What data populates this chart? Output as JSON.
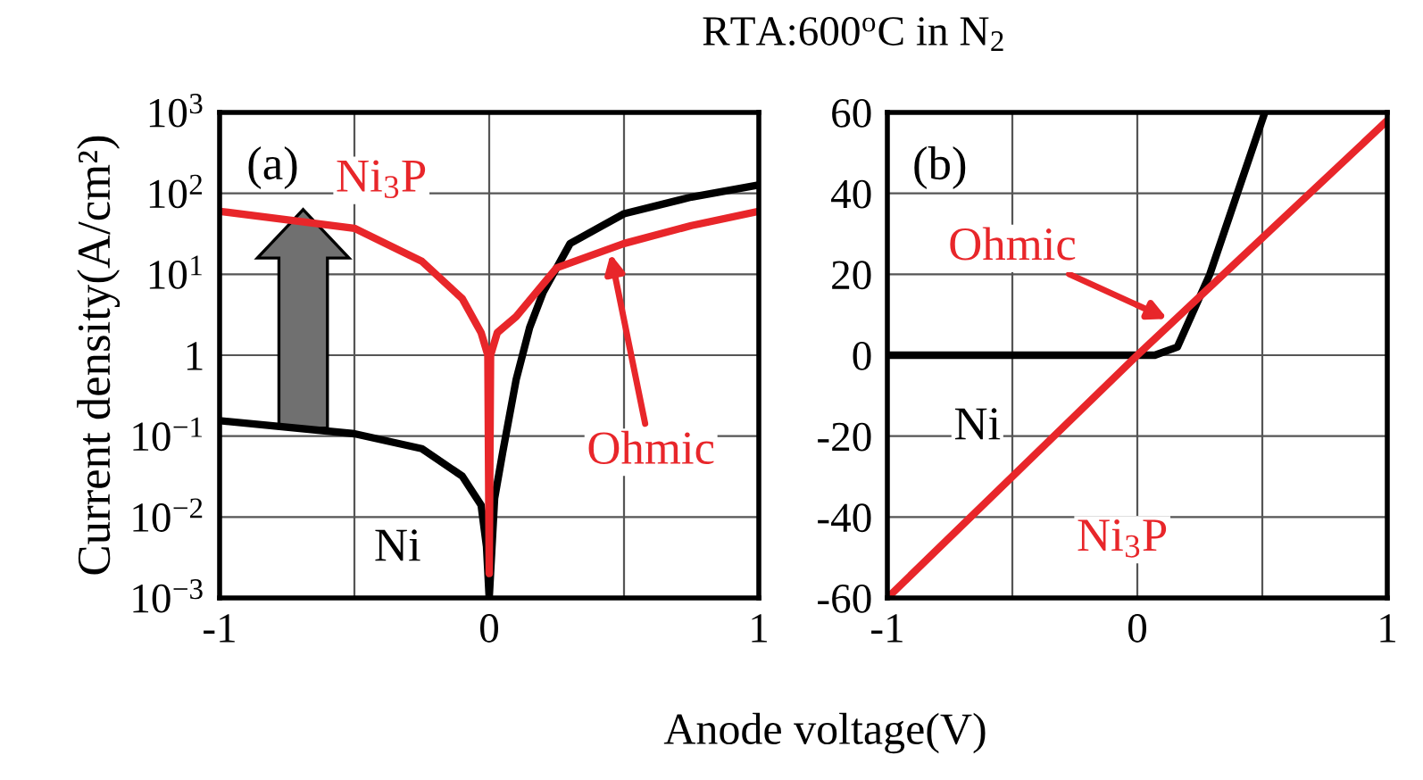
{
  "chart_data": [
    {
      "type": "line",
      "title": "RTA:600$^{o}$C in N$_{2}$",
      "xlabel": "Anode voltage(V)",
      "ylabel": "Current density(A/cm²)",
      "log": "y",
      "grid": true,
      "xlim": [
        -1,
        1
      ],
      "xticks": [
        -1,
        {
          "value": -0.5,
          "label": null
        },
        0,
        {
          "value": 0.5,
          "label": null
        },
        1
      ],
      "ylim": [
        0.001,
        1000
      ],
      "yticks": [
        {
          "value": 0.001,
          "label": "10$^{−3}$"
        },
        {
          "value": 0.01,
          "label": "10$^{−2}$"
        },
        {
          "value": 0.1,
          "label": "10$^{−1}$"
        },
        1,
        {
          "value": 10,
          "label": "10$^{1}$"
        },
        {
          "value": 100,
          "label": "10$^{2}$"
        },
        {
          "value": 1000,
          "label": "10$^{3}$"
        }
      ],
      "series": [
        {
          "name": "Ni",
          "color": "#000000",
          "x": [
            -1,
            -0.5,
            -0.25,
            -0.1,
            -0.03,
            -0.01,
            0,
            0.02,
            0.05,
            0.1,
            0.15,
            0.2,
            0.3,
            0.5,
            0.75,
            1
          ],
          "values": [
            0.155,
            0.107,
            0.07,
            0.032,
            0.014,
            0.0043,
            0.001,
            0.017,
            0.063,
            0.5,
            2.2,
            6,
            24,
            56,
            90,
            127
          ]
        },
        {
          "name": "Ni$_{3}$P",
          "color": "#e8262a",
          "x": [
            -1,
            -0.5,
            -0.25,
            -0.1,
            -0.03,
            -0.005,
            0,
            0.005,
            0.03,
            0.1,
            0.25,
            0.5,
            0.75,
            1
          ],
          "values": [
            60,
            37,
            14.5,
            5,
            1.9,
            1,
            0.002,
            1,
            1.9,
            3,
            12,
            24,
            40,
            60
          ]
        }
      ],
      "annotations": [
        "(a)",
        {
          "text": "Ohmic",
          "x": 0.45,
          "y": 18
        }
      ]
    },
    {
      "type": "line",
      "grid": true,
      "xlim": [
        -1,
        1
      ],
      "xticks": [
        -1,
        {
          "value": -0.5,
          "label": null
        },
        0,
        {
          "value": 0.5,
          "label": null
        },
        {
          "value": 1,
          "label": "1"
        }
      ],
      "ylim": [
        -60,
        60
      ],
      "yticks": [
        -60,
        -40,
        -20,
        0,
        20,
        40,
        60
      ],
      "series": [
        {
          "name": "Ni",
          "color": "#000000",
          "x": [
            -1,
            0,
            0.07,
            0.16,
            0.29,
            0.4,
            0.51
          ],
          "values": [
            0,
            0,
            0,
            2,
            20,
            40,
            60
          ]
        },
        {
          "name": "Ni$_{3}$P",
          "color": "#e8262a",
          "x": [
            -1,
            0,
            1
          ],
          "values": [
            -60,
            0,
            58
          ]
        }
      ],
      "annotations": [
        "(b)",
        {
          "text": "Ohmic",
          "x": 0.12,
          "y": 9
        }
      ]
    }
  ]
}
